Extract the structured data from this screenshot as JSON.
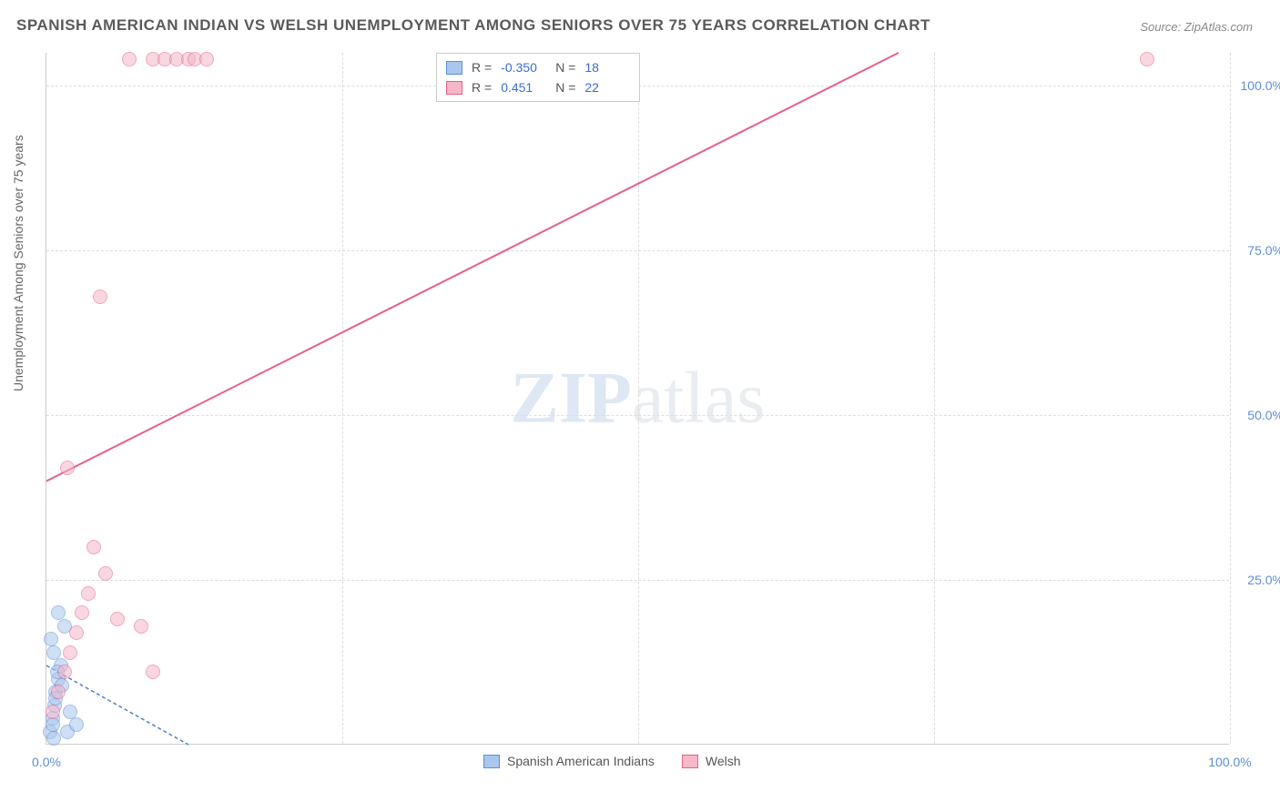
{
  "title": "SPANISH AMERICAN INDIAN VS WELSH UNEMPLOYMENT AMONG SENIORS OVER 75 YEARS CORRELATION CHART",
  "source": "Source: ZipAtlas.com",
  "ylabel": "Unemployment Among Seniors over 75 years",
  "watermark_a": "ZIP",
  "watermark_b": "atlas",
  "chart": {
    "type": "scatter",
    "xlim": [
      0,
      100
    ],
    "ylim": [
      0,
      105
    ],
    "x_ticks": [
      {
        "v": 0,
        "label": "0.0%"
      },
      {
        "v": 100,
        "label": "100.0%"
      }
    ],
    "y_ticks": [
      {
        "v": 25,
        "label": "25.0%"
      },
      {
        "v": 50,
        "label": "50.0%"
      },
      {
        "v": 75,
        "label": "75.0%"
      },
      {
        "v": 100,
        "label": "100.0%"
      }
    ],
    "x_grid_at": [
      25,
      50,
      75,
      100
    ],
    "background_color": "#ffffff",
    "grid_color": "#dddddd",
    "axis_color": "#cccccc",
    "tick_color": "#5b8fd6",
    "marker_radius": 8,
    "marker_opacity": 0.55,
    "series": [
      {
        "name": "Spanish American Indians",
        "color_fill": "#a9c6ec",
        "color_stroke": "#5b8fd6",
        "R": "-0.350",
        "N": "18",
        "trend": {
          "x1": 0,
          "y1": 12,
          "x2": 12,
          "y2": 0,
          "color": "#4f7fc9",
          "width": 1.5,
          "dash": "4 3"
        },
        "points": [
          [
            0.3,
            2
          ],
          [
            0.5,
            4
          ],
          [
            0.7,
            6
          ],
          [
            0.8,
            8
          ],
          [
            1.0,
            10
          ],
          [
            1.2,
            12
          ],
          [
            0.6,
            14
          ],
          [
            0.4,
            16
          ],
          [
            1.5,
            18
          ],
          [
            1.0,
            20
          ],
          [
            0.5,
            3
          ],
          [
            2.0,
            5
          ],
          [
            0.8,
            7
          ],
          [
            1.3,
            9
          ],
          [
            0.9,
            11
          ],
          [
            0.6,
            1
          ],
          [
            1.8,
            2
          ],
          [
            2.5,
            3
          ]
        ]
      },
      {
        "name": "Welsh",
        "color_fill": "#f4b8c9",
        "color_stroke": "#e75f8a",
        "R": "0.451",
        "N": "22",
        "trend": {
          "x1": 0,
          "y1": 40,
          "x2": 72,
          "y2": 105,
          "color": "#e75f8a",
          "width": 2,
          "dash": ""
        },
        "points": [
          [
            0.5,
            5
          ],
          [
            1.0,
            8
          ],
          [
            1.5,
            11
          ],
          [
            2.0,
            14
          ],
          [
            2.5,
            17
          ],
          [
            3.0,
            20
          ],
          [
            3.5,
            23
          ],
          [
            4.0,
            30
          ],
          [
            1.8,
            42
          ],
          [
            5.0,
            26
          ],
          [
            6.0,
            19
          ],
          [
            8.0,
            18
          ],
          [
            9.0,
            11
          ],
          [
            4.5,
            68
          ],
          [
            7.0,
            104
          ],
          [
            9.0,
            104
          ],
          [
            10.0,
            104
          ],
          [
            11.0,
            104
          ],
          [
            12.0,
            104
          ],
          [
            12.5,
            104
          ],
          [
            13.5,
            104
          ],
          [
            93.0,
            104
          ]
        ]
      }
    ]
  },
  "legend_bottom": [
    {
      "label": "Spanish American Indians",
      "fill": "#a9c6ec",
      "stroke": "#5b8fd6"
    },
    {
      "label": "Welsh",
      "fill": "#f4b8c9",
      "stroke": "#e75f8a"
    }
  ]
}
